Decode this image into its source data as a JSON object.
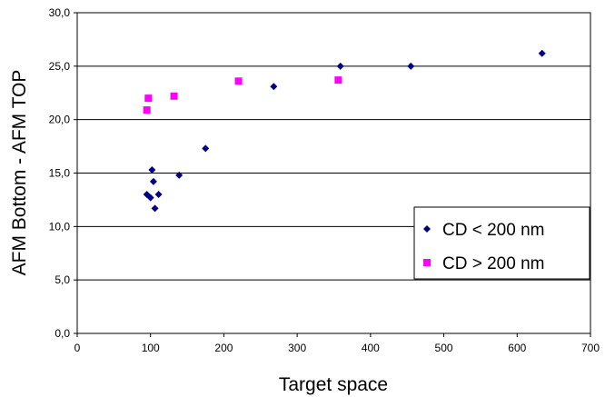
{
  "chart_data": {
    "type": "scatter",
    "xlabel": "Target space",
    "ylabel": "AFM Bottom - AFM TOP",
    "xlim": [
      0,
      700
    ],
    "ylim": [
      0,
      30
    ],
    "x_ticks": [
      "0",
      "100",
      "200",
      "300",
      "400",
      "500",
      "600",
      "700"
    ],
    "y_ticks": [
      "0,0",
      "5,0",
      "10,0",
      "15,0",
      "20,0",
      "25,0",
      "30,0"
    ],
    "grid": "horizontal",
    "legend_position": "bottom-right",
    "series": [
      {
        "name": "CD < 200 nm",
        "marker": "diamond",
        "color": "#000080",
        "points": [
          {
            "x": 95,
            "y": 13.0
          },
          {
            "x": 100,
            "y": 12.7
          },
          {
            "x": 102,
            "y": 15.3
          },
          {
            "x": 104,
            "y": 14.2
          },
          {
            "x": 106,
            "y": 11.7
          },
          {
            "x": 111,
            "y": 13.0
          },
          {
            "x": 139,
            "y": 14.8
          },
          {
            "x": 175,
            "y": 17.3
          },
          {
            "x": 268,
            "y": 23.1
          },
          {
            "x": 359,
            "y": 25.0
          },
          {
            "x": 455,
            "y": 25.0
          },
          {
            "x": 634,
            "y": 26.2
          }
        ]
      },
      {
        "name": "CD > 200 nm",
        "marker": "square",
        "color": "#FF00FF",
        "points": [
          {
            "x": 95,
            "y": 20.9
          },
          {
            "x": 97,
            "y": 22.0
          },
          {
            "x": 132,
            "y": 22.2
          },
          {
            "x": 220,
            "y": 23.6
          },
          {
            "x": 356,
            "y": 23.7
          }
        ]
      }
    ]
  }
}
